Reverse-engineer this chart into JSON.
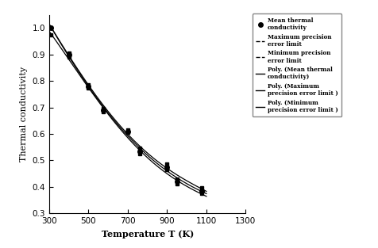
{
  "xlabel": "Temperature T (K)",
  "ylabel": "Thermal conductivity",
  "xlim": [
    300,
    1300
  ],
  "ylim": [
    0.3,
    1.05
  ],
  "xticks": [
    300,
    500,
    700,
    900,
    1100,
    1300
  ],
  "yticks": [
    0.3,
    0.4,
    0.5,
    0.6,
    0.7,
    0.8,
    0.9,
    1.0
  ],
  "mean_T": [
    310,
    400,
    500,
    575,
    700,
    760,
    900,
    950,
    1075
  ],
  "mean_k": [
    1.0,
    0.9,
    0.78,
    0.69,
    0.61,
    0.535,
    0.475,
    0.42,
    0.385
  ],
  "max_T": [
    310,
    400,
    500,
    575,
    700,
    760,
    900,
    950,
    1075
  ],
  "max_k": [
    1.0,
    0.905,
    0.785,
    0.695,
    0.615,
    0.545,
    0.485,
    0.43,
    0.395
  ],
  "min_T": [
    310,
    400,
    500,
    575,
    700,
    760,
    900,
    950,
    1075
  ],
  "min_k": [
    0.975,
    0.89,
    0.775,
    0.685,
    0.605,
    0.525,
    0.465,
    0.41,
    0.375
  ],
  "poly_degree": 4,
  "background_color": "#ffffff",
  "line_color": "#000000",
  "scatter_color": "#000000",
  "legend_entries": [
    "Mean thermal\nconductivity",
    "Maximum precision\nerror limit",
    "Minimum precision\nerror limit",
    "Poly. (Mean thermal\nconductivity)",
    "Poly. (Maximum\nprecision error limit )",
    "Poly. (Minimum\nprecision error limit )"
  ]
}
